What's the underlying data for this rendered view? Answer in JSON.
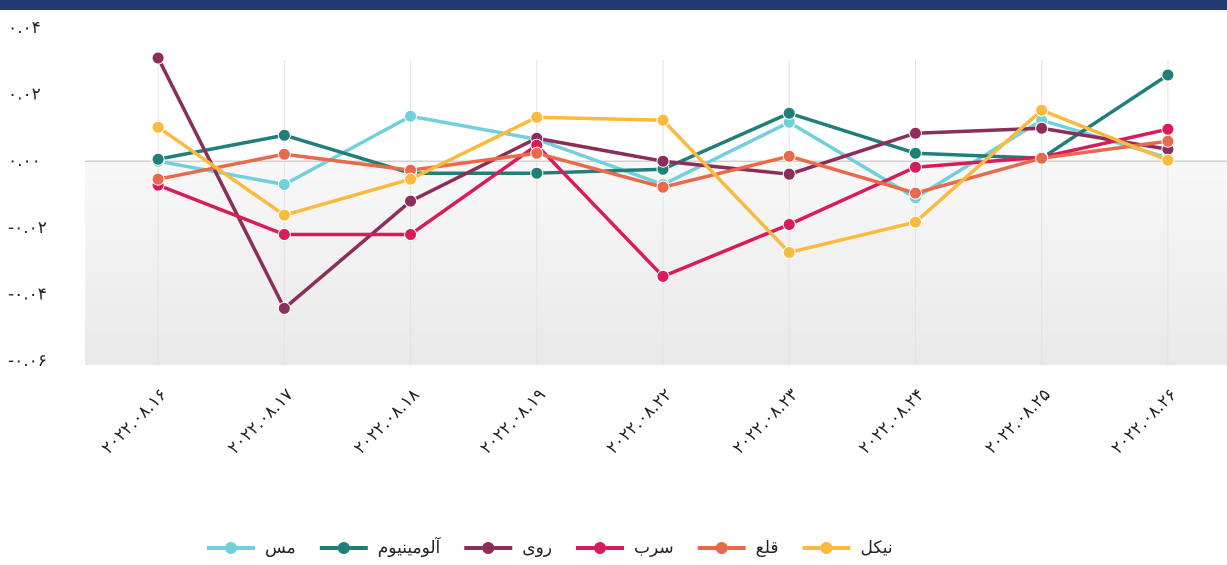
{
  "chart_data": {
    "type": "line",
    "categories": [
      "۲۰۲۲.۰۸.۱۶",
      "۲۰۲۲.۰۸.۱۷",
      "۲۰۲۲.۰۸.۱۸",
      "۲۰۲۲.۰۸.۱۹",
      "۲۰۲۲.۰۸.۲۲",
      "۲۰۲۲.۰۸.۲۳",
      "۲۰۲۲.۰۸.۲۴",
      "۲۰۲۲.۰۸.۲۵",
      "۲۰۲۲.۰۸.۲۶"
    ],
    "series": [
      {
        "name": "مس",
        "color": "#72d0dc",
        "values": [
          0.0,
          -0.007,
          0.0135,
          0.0066,
          -0.007,
          0.0117,
          -0.011,
          0.0123,
          0.001
        ]
      },
      {
        "name": "آلومینیوم",
        "color": "#207f78",
        "values": [
          0.0006,
          0.0078,
          -0.0036,
          -0.0036,
          -0.0024,
          0.0144,
          0.0024,
          0.0009,
          0.0259
        ]
      },
      {
        "name": "روی",
        "color": "#8c2d5a",
        "values": [
          0.031,
          -0.0442,
          -0.012,
          0.0069,
          0.0,
          -0.0039,
          0.0084,
          0.0099,
          0.0036
        ]
      },
      {
        "name": "سرب",
        "color": "#d91b5b",
        "values": [
          -0.0072,
          -0.022,
          -0.022,
          0.0048,
          -0.0346,
          -0.019,
          -0.0018,
          0.0012,
          0.0096
        ]
      },
      {
        "name": "قلع",
        "color": "#e96a4b",
        "values": [
          -0.0054,
          0.0021,
          -0.0027,
          0.0024,
          -0.0078,
          0.0015,
          -0.0096,
          0.0009,
          0.006
        ]
      },
      {
        "name": "نیکل",
        "color": "#f9ba3d",
        "values": [
          0.0102,
          -0.0162,
          -0.0054,
          0.0132,
          0.0123,
          -0.0274,
          -0.0183,
          0.0153,
          0.0003
        ]
      }
    ],
    "ylim": [
      -0.06,
      0.04
    ],
    "yticks": [
      {
        "value": 0.04,
        "label": "۰.۰۴"
      },
      {
        "value": 0.02,
        "label": "۰.۰۲"
      },
      {
        "value": 0,
        "label": "۰.۰۰"
      },
      {
        "value": -0.02,
        "label": "-۰.۰۲"
      },
      {
        "value": -0.04,
        "label": "-۰.۰۴"
      },
      {
        "value": -0.06,
        "label": "-۰.۰۶"
      }
    ],
    "grid": true
  }
}
